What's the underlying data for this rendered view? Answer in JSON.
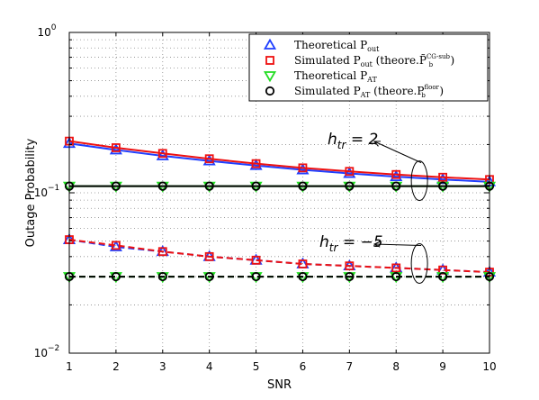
{
  "chart_data": {
    "type": "line",
    "xlabel": "SNR",
    "ylabel": "Outage Probability",
    "x": [
      1,
      2,
      3,
      4,
      5,
      6,
      7,
      8,
      9,
      10
    ],
    "xlim": [
      1,
      10
    ],
    "ylim": [
      0.01,
      1
    ],
    "yscale": "log",
    "x_ticks": [
      "1",
      "2",
      "3",
      "4",
      "5",
      "6",
      "7",
      "8",
      "9",
      "10"
    ],
    "y_ticks": [
      {
        "value": 0.01,
        "base": "10",
        "exp": "−2"
      },
      {
        "value": 0.1,
        "base": "10",
        "exp": "−1"
      },
      {
        "value": 1,
        "base": "10",
        "exp": "0"
      }
    ],
    "grid": true,
    "legend_placement": "top-right",
    "legend": [
      {
        "main": "Theoretical P",
        "sub": "out",
        "rest": "",
        "marker": "triangle-up",
        "color": "#1f3fff"
      },
      {
        "main": "Simulated P",
        "sub": "out",
        "rest": " (theore.P̃",
        "rest_sub": "b",
        "rest_sup": "CG-sub",
        "tail": ")",
        "marker": "square",
        "color": "#ee1111"
      },
      {
        "main": "Theoretical P",
        "sub": "AT",
        "rest": "",
        "marker": "triangle-down",
        "color": "#22dd22"
      },
      {
        "main": "Simulated P",
        "sub": "AT",
        "rest": " (theore.P",
        "rest_sub": "b",
        "rest_sup": "floor",
        "tail": ")",
        "marker": "circle",
        "color": "#000000"
      }
    ],
    "annotations": [
      {
        "base": "h",
        "sub": "tr",
        "rest": " = 2",
        "x": 9,
        "y": 0.11
      },
      {
        "base": "h",
        "sub": "tr",
        "rest": " = −5",
        "x": 9,
        "y": 0.031
      }
    ],
    "series": [
      {
        "group": "htr2",
        "kind": "theoretical_out",
        "color": "#1f3fff",
        "marker": "triangle-up",
        "dash": "solid",
        "values": [
          0.203,
          0.185,
          0.17,
          0.158,
          0.148,
          0.139,
          0.132,
          0.126,
          0.121,
          0.117
        ]
      },
      {
        "group": "htr2",
        "kind": "simulated_out",
        "color": "#ee1111",
        "marker": "square",
        "dash": "solid",
        "values": [
          0.21,
          0.191,
          0.176,
          0.163,
          0.152,
          0.143,
          0.136,
          0.13,
          0.125,
          0.121
        ]
      },
      {
        "group": "htr2",
        "kind": "theoretical_at",
        "color": "#22dd22",
        "marker": "triangle-down",
        "dash": "solid",
        "values": [
          0.11,
          0.11,
          0.11,
          0.11,
          0.11,
          0.11,
          0.11,
          0.11,
          0.11,
          0.11
        ]
      },
      {
        "group": "htr2",
        "kind": "simulated_at",
        "color": "#000000",
        "marker": "circle",
        "dash": "solid",
        "values": [
          0.11,
          0.11,
          0.11,
          0.11,
          0.11,
          0.11,
          0.11,
          0.11,
          0.11,
          0.11
        ]
      },
      {
        "group": "htr-5",
        "kind": "theoretical_out",
        "color": "#1f3fff",
        "marker": "triangle-up",
        "dash": "dashed",
        "values": [
          0.051,
          0.046,
          0.043,
          0.04,
          0.038,
          0.036,
          0.035,
          0.034,
          0.033,
          0.032
        ]
      },
      {
        "group": "htr-5",
        "kind": "simulated_out",
        "color": "#ee1111",
        "marker": "square",
        "dash": "dashed",
        "values": [
          0.051,
          0.047,
          0.043,
          0.04,
          0.038,
          0.036,
          0.035,
          0.034,
          0.033,
          0.032
        ]
      },
      {
        "group": "htr-5",
        "kind": "theoretical_at",
        "color": "#22dd22",
        "marker": "triangle-down",
        "dash": "dashed",
        "values": [
          0.03,
          0.03,
          0.03,
          0.03,
          0.03,
          0.03,
          0.03,
          0.03,
          0.03,
          0.03
        ]
      },
      {
        "group": "htr-5",
        "kind": "simulated_at",
        "color": "#000000",
        "marker": "circle",
        "dash": "dashed",
        "values": [
          0.03,
          0.03,
          0.03,
          0.03,
          0.03,
          0.03,
          0.03,
          0.03,
          0.03,
          0.03
        ]
      }
    ]
  }
}
